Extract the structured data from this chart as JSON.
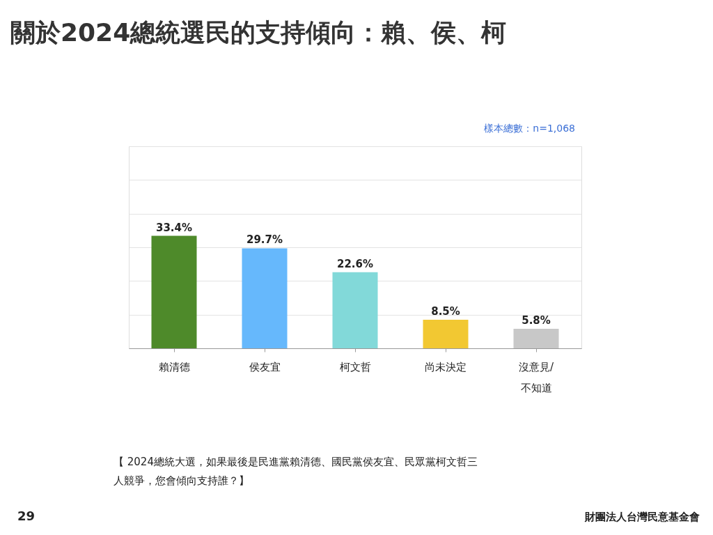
{
  "chart_data": {
    "type": "bar",
    "title": "關於2024總統選民的支持傾向：賴、侯、柯",
    "categories": [
      "賴清德",
      "侯友宜",
      "柯文哲",
      "尚未決定",
      "沒意見/\n不知道"
    ],
    "values": [
      33.4,
      29.7,
      22.6,
      8.5,
      5.8
    ],
    "value_labels": [
      "33.4%",
      "29.7%",
      "22.6%",
      "8.5%",
      "5.8%"
    ],
    "colors": [
      "#4e8a2a",
      "#66b8fc",
      "#82d9d9",
      "#f2c832",
      "#c8c8c8"
    ],
    "ylim": [
      0,
      60
    ],
    "yticks": [
      {
        "value": 0,
        "label": null
      },
      {
        "value": 10,
        "label": null
      },
      {
        "value": 20,
        "label": null
      },
      {
        "value": 30,
        "label": null
      },
      {
        "value": 40,
        "label": null
      },
      {
        "value": 50,
        "label": null
      },
      {
        "value": 60,
        "label": null
      }
    ],
    "grid": "y",
    "tick_labels": "x",
    "annotations": [
      "樣本總數：n=1,068",
      "【 2024總統大選，如果最後是民進黨賴清德、國民黨侯友宜、民眾黨柯文哲三人競爭，您會傾向支持誰？】",
      "29",
      "財團法人台灣民意基金會"
    ]
  }
}
